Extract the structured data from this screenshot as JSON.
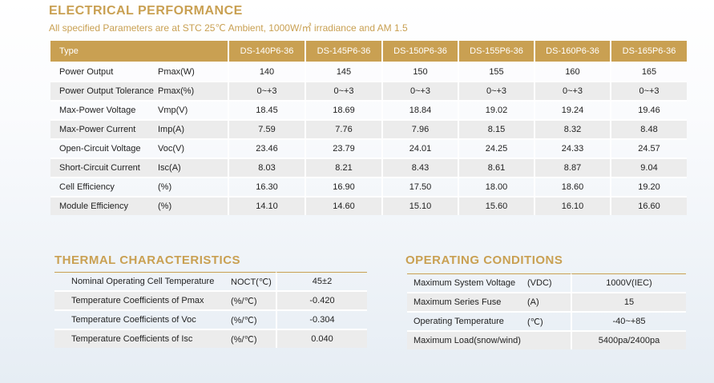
{
  "electrical": {
    "title": "ELECTRICAL PERFORMANCE",
    "subtitle": "All specified Parameters are at STC 25℃ Ambient, 1000W/㎡ irradiance and AM 1.5",
    "header_label": "Type",
    "models": [
      "DS-140P6-36",
      "DS-145P6-36",
      "DS-150P6-36",
      "DS-155P6-36",
      "DS-160P6-36",
      "DS-165P6-36"
    ],
    "rows": [
      {
        "name": "Power Output",
        "unit": "Pmax(W)",
        "values": [
          "140",
          "145",
          "150",
          "155",
          "160",
          "165"
        ]
      },
      {
        "name": "Power Output Tolerance",
        "unit": "Pmax(%)",
        "values": [
          "0~+3",
          "0~+3",
          "0~+3",
          "0~+3",
          "0~+3",
          "0~+3"
        ]
      },
      {
        "name": "Max-Power Voltage",
        "unit": "Vmp(V)",
        "values": [
          "18.45",
          "18.69",
          "18.84",
          "19.02",
          "19.24",
          "19.46"
        ]
      },
      {
        "name": "Max-Power Current",
        "unit": "Imp(A)",
        "values": [
          "7.59",
          "7.76",
          "7.96",
          "8.15",
          "8.32",
          "8.48"
        ]
      },
      {
        "name": "Open-Circuit Voltage",
        "unit": "Voc(V)",
        "values": [
          "23.46",
          "23.79",
          "24.01",
          "24.25",
          "24.33",
          "24.57"
        ]
      },
      {
        "name": "Short-Circuit Current",
        "unit": "Isc(A)",
        "values": [
          "8.03",
          "8.21",
          "8.43",
          "8.61",
          "8.87",
          "9.04"
        ]
      },
      {
        "name": "Cell Efficiency",
        "unit": "(%)",
        "values": [
          "16.30",
          "16.90",
          "17.50",
          "18.00",
          "18.60",
          "19.20"
        ]
      },
      {
        "name": "Module Efficiency",
        "unit": "(%)",
        "values": [
          "14.10",
          "14.60",
          "15.10",
          "15.60",
          "16.10",
          "16.60"
        ]
      }
    ]
  },
  "thermal": {
    "title": "THERMAL CHARACTERISTICS",
    "rows": [
      {
        "name": "Nominal Operating Cell Temperature",
        "unit": "NOCT(℃)",
        "value": "45±2"
      },
      {
        "name": "Temperature Coefficients of Pmax",
        "unit": "(%/℃)",
        "value": "-0.420"
      },
      {
        "name": "Temperature Coefficients of Voc",
        "unit": "(%/℃)",
        "value": "-0.304"
      },
      {
        "name": "Temperature Coefficients of Isc",
        "unit": "(%/℃)",
        "value": "0.040"
      }
    ]
  },
  "operating": {
    "title": "OPERATING CONDITIONS",
    "rows": [
      {
        "name": "Maximum System Voltage",
        "unit": "(VDC)",
        "value": "1000V(IEC)"
      },
      {
        "name": "Maximum Series Fuse",
        "unit": "(A)",
        "value": "15"
      },
      {
        "name": "Operating Temperature",
        "unit": "(℃)",
        "value": "-40~+85"
      },
      {
        "name": "Maximum Load(snow/wind)",
        "unit": "",
        "value": "5400pa/2400pa"
      }
    ]
  },
  "colors": {
    "accent": "#c9a052",
    "row_alt": "#ececec"
  }
}
